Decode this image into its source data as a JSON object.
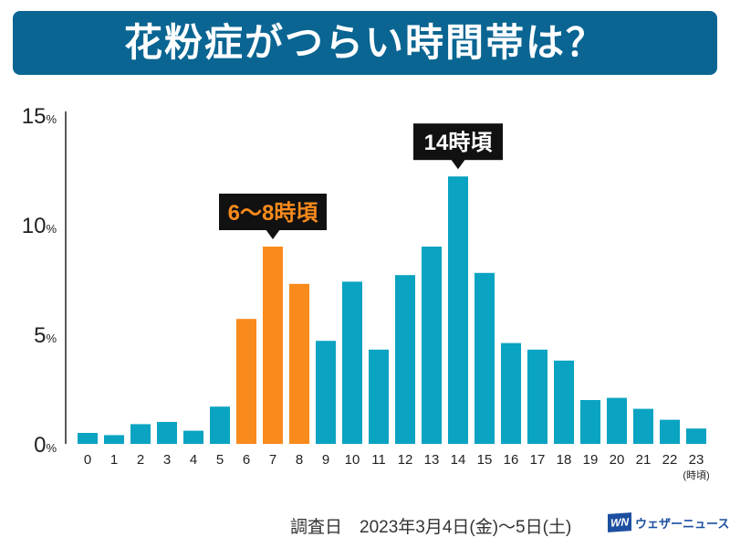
{
  "title": "花粉症がつらい時間帯は？",
  "chart_data": {
    "type": "bar",
    "title": "花粉症がつらい時間帯は？",
    "xlabel": "(時頃)",
    "ylabel": "",
    "ylim": [
      0,
      15
    ],
    "yticks": [
      {
        "v": 0,
        "label": "0"
      },
      {
        "v": 5,
        "label": "5"
      },
      {
        "v": 10,
        "label": "10"
      },
      {
        "v": 15,
        "label": "15"
      }
    ],
    "yunit": "%",
    "categories": [
      "0",
      "1",
      "2",
      "3",
      "4",
      "5",
      "6",
      "7",
      "8",
      "9",
      "10",
      "11",
      "12",
      "13",
      "14",
      "15",
      "16",
      "17",
      "18",
      "19",
      "20",
      "21",
      "22",
      "23"
    ],
    "values": [
      0.5,
      0.4,
      0.9,
      1.0,
      0.6,
      1.7,
      5.7,
      9.0,
      7.3,
      4.7,
      7.4,
      4.3,
      7.7,
      9.0,
      12.2,
      7.8,
      4.6,
      4.3,
      3.8,
      2.0,
      2.1,
      1.6,
      1.1,
      0.7
    ],
    "highlight": [
      6,
      7,
      8
    ],
    "colors": {
      "normal": "#0aa3c2",
      "highlight": "#f98a1c"
    },
    "annotations": [
      {
        "text": "6〜8時頃",
        "target": 7,
        "color": "#f98a1c"
      },
      {
        "text": "14時頃",
        "target": 14,
        "color": "#ffffff"
      }
    ]
  },
  "footer": {
    "survey": "調査日　2023年3月4日(金)〜5日(土)"
  },
  "logo": {
    "mark": "WN",
    "text": "ウェザーニュース"
  }
}
